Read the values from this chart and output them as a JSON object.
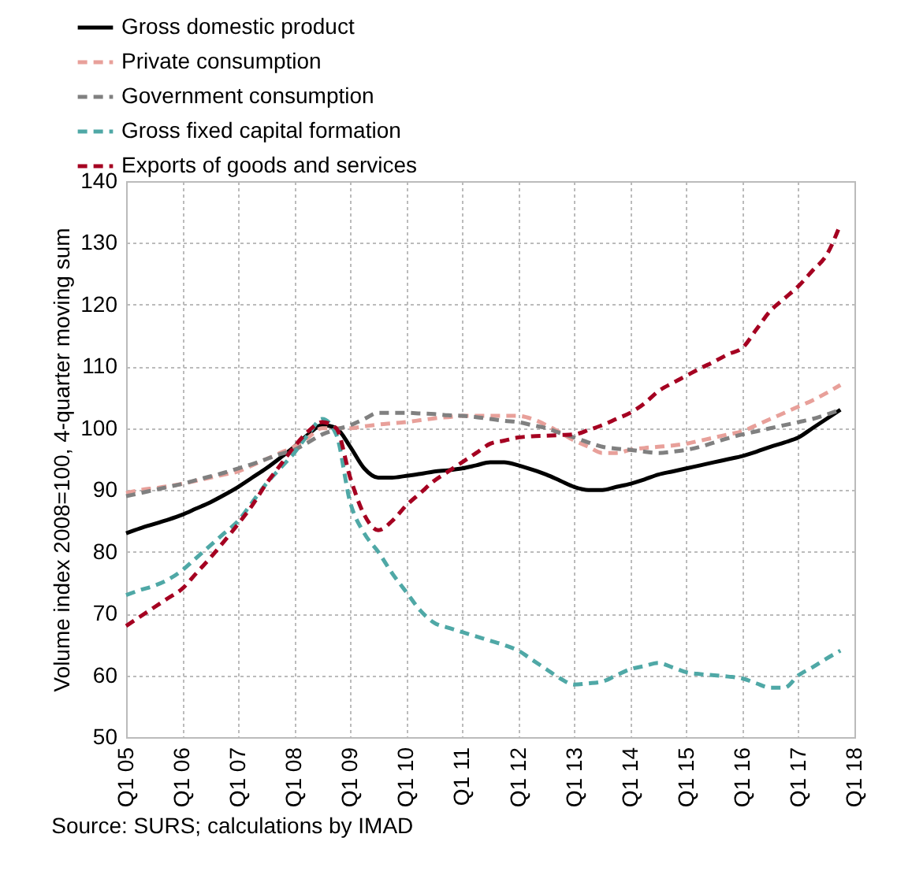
{
  "chart_data": {
    "type": "line",
    "ylabel": "Volume index 2008=100, 4-quarter moving sum",
    "annotations": [
      "Source: SURS; calculations by IMAD"
    ],
    "categories": [
      "Q1 05",
      null,
      null,
      null,
      "Q1 06",
      null,
      null,
      null,
      "Q1 07",
      null,
      null,
      null,
      "Q1 08",
      null,
      null,
      null,
      "Q1 09",
      null,
      null,
      null,
      "Q1 10",
      null,
      null,
      null,
      "Q1 11",
      null,
      null,
      null,
      "Q1 12",
      null,
      null,
      null,
      "Q1 13",
      null,
      null,
      null,
      "Q1 14",
      null,
      null,
      null,
      "Q1 15",
      null,
      null,
      null,
      "Q1 16",
      null,
      null,
      null,
      "Q1 17",
      null,
      null,
      null,
      "Q1 18"
    ],
    "ylim": [
      50,
      140
    ],
    "yticks": [
      50,
      60,
      70,
      80,
      90,
      100,
      110,
      120,
      130,
      140
    ],
    "grid": true,
    "legend": "top left",
    "series": [
      {
        "name": "Gross domestic product",
        "color": "#000000",
        "line_style": "solid",
        "values": [
          83,
          83.8,
          84.5,
          85.2,
          86,
          87,
          88,
          89.2,
          90.5,
          92,
          93.5,
          95.2,
          97,
          99,
          100.5,
          100,
          97,
          93.5,
          92,
          92,
          92.3,
          92.6,
          93,
          93.2,
          93.5,
          94,
          94.5,
          94.5,
          94,
          93.3,
          92.5,
          91.5,
          90.5,
          90,
          90,
          90.5,
          91,
          91.7,
          92.5,
          93,
          93.5,
          94,
          94.5,
          95,
          95.5,
          96.2,
          97,
          97.7,
          98.5,
          100,
          101.5,
          103,
          null
        ]
      },
      {
        "name": "Private consumption",
        "color": "#e8a09a",
        "line_style": "dashed",
        "values": [
          89.5,
          90,
          90.3,
          90.6,
          91,
          91.5,
          92,
          92.5,
          93,
          94,
          95,
          96,
          97,
          98.5,
          100,
          100,
          100,
          100.3,
          100.6,
          100.8,
          101,
          101.3,
          101.6,
          101.8,
          102,
          102,
          102,
          102,
          102,
          101.5,
          100.5,
          99.3,
          98,
          97,
          96,
          96,
          96.5,
          96.8,
          97,
          97.2,
          97.5,
          98,
          98.5,
          99,
          99.5,
          100.5,
          101.5,
          102.5,
          103.5,
          104.5,
          105.7,
          107,
          null
        ]
      },
      {
        "name": "Government consumption",
        "color": "#808080",
        "line_style": "dashed",
        "values": [
          89,
          89.5,
          90,
          90.5,
          91,
          91.6,
          92.2,
          92.8,
          93.5,
          94.2,
          95,
          95.8,
          96.5,
          97.7,
          99,
          99.8,
          100.5,
          101.5,
          102.5,
          102.5,
          102.5,
          102.4,
          102.3,
          102.1,
          102,
          101.8,
          101.5,
          101.2,
          101,
          100.5,
          100,
          99.2,
          98.5,
          97.7,
          97,
          96.7,
          96.5,
          96.2,
          96,
          96.2,
          96.5,
          97,
          97.7,
          98.4,
          99,
          99.5,
          100,
          100.5,
          101,
          101.5,
          102.2,
          103,
          null
        ]
      },
      {
        "name": "Gross fixed capital formation",
        "color": "#4fa8a6",
        "line_style": "dashed",
        "values": [
          73,
          73.8,
          74.5,
          75.5,
          77,
          79,
          81,
          83,
          85,
          88,
          91,
          93.5,
          96,
          99,
          101.5,
          99,
          88,
          83,
          80,
          76.5,
          73.5,
          70.5,
          68.5,
          67.7,
          67,
          66.3,
          65.6,
          64.9,
          64,
          62.5,
          61,
          59.5,
          58.5,
          58.7,
          59,
          60,
          61,
          61.5,
          62,
          61.3,
          60.5,
          60.2,
          60,
          59.8,
          59.5,
          58.7,
          58,
          58,
          60,
          61.3,
          62.7,
          64,
          null
        ]
      },
      {
        "name": "Exports of goods and services",
        "color": "#a50021",
        "line_style": "dashed",
        "values": [
          68,
          69.5,
          71,
          72.5,
          74,
          76.5,
          79,
          81.7,
          84.5,
          87.5,
          91,
          94,
          97,
          99.5,
          101,
          100,
          92,
          86,
          83.5,
          85,
          87.5,
          89.5,
          91.5,
          93,
          94.5,
          96,
          97.5,
          98,
          98.5,
          98.7,
          98.8,
          98.9,
          99,
          99.7,
          100.5,
          101.5,
          102.5,
          104,
          106,
          107.3,
          108.5,
          109.7,
          110.8,
          112,
          113,
          116,
          119,
          121,
          123,
          125.5,
          128,
          133,
          null
        ]
      }
    ]
  }
}
